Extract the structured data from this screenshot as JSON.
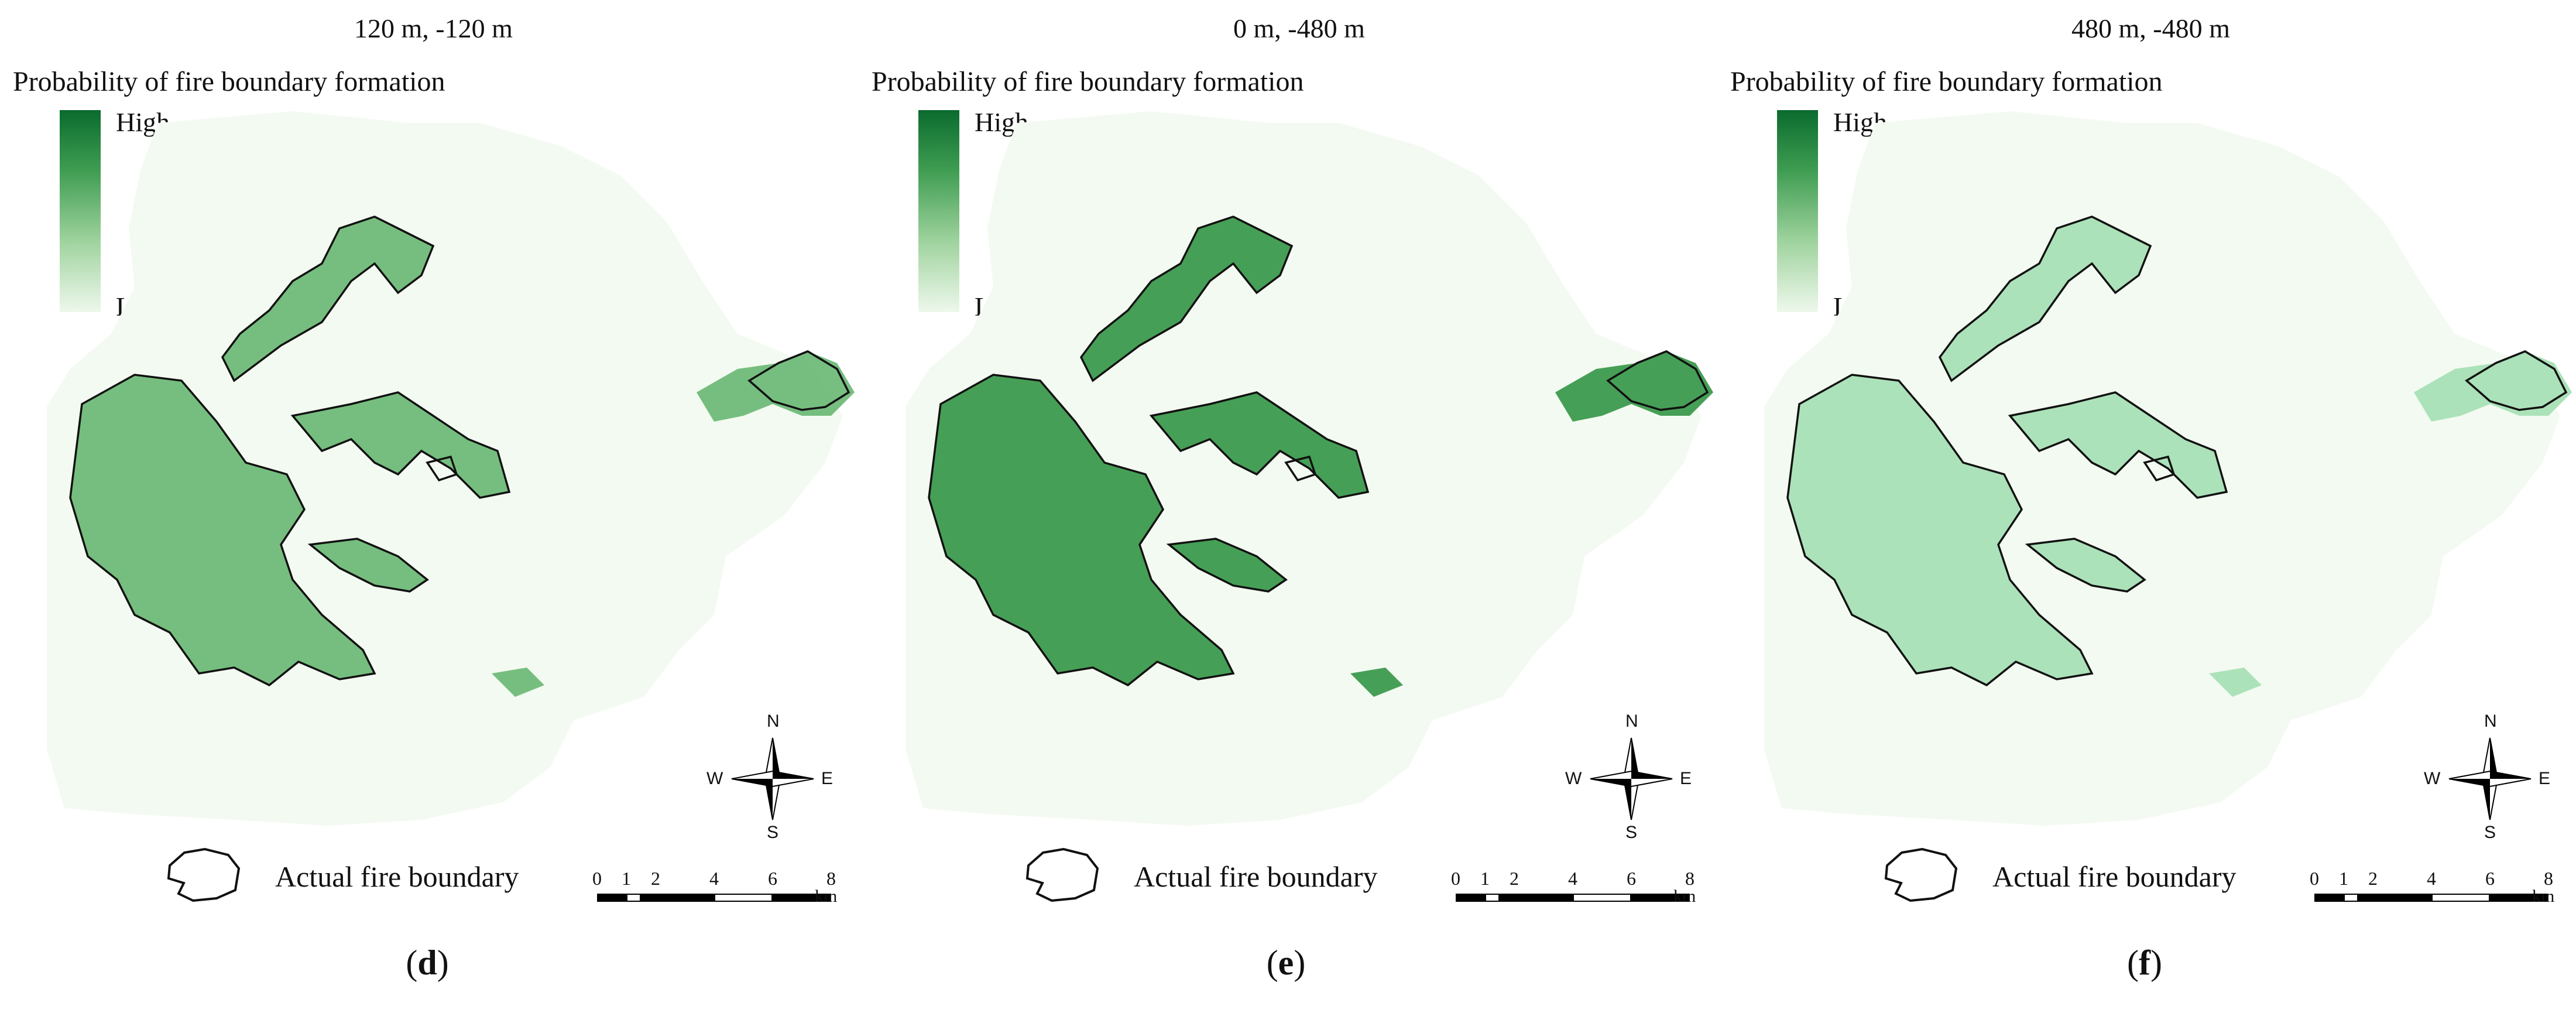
{
  "legend": {
    "title": "Probability of fire boundary formation",
    "high": "High",
    "low": "Low"
  },
  "boundary_label": "Actual fire boundary",
  "compass": {
    "n": "N",
    "s": "S",
    "e": "E",
    "w": "W"
  },
  "scale": {
    "ticks": [
      "0",
      "1",
      "2",
      "4",
      "6",
      "8"
    ],
    "unit": "km"
  },
  "colors": {
    "high": "#0a6b2e",
    "low": "#eef8ec",
    "outline": "#111111"
  },
  "panels": [
    {
      "title": "120 m, -120 m",
      "caption_open": "(",
      "caption_letter": "d",
      "caption_close": ")"
    },
    {
      "title": "0 m, -480 m",
      "caption_open": "(",
      "caption_letter": "e",
      "caption_close": ")"
    },
    {
      "title": "480 m, -480 m",
      "caption_open": "(",
      "caption_letter": "f",
      "caption_close": ")"
    }
  ]
}
